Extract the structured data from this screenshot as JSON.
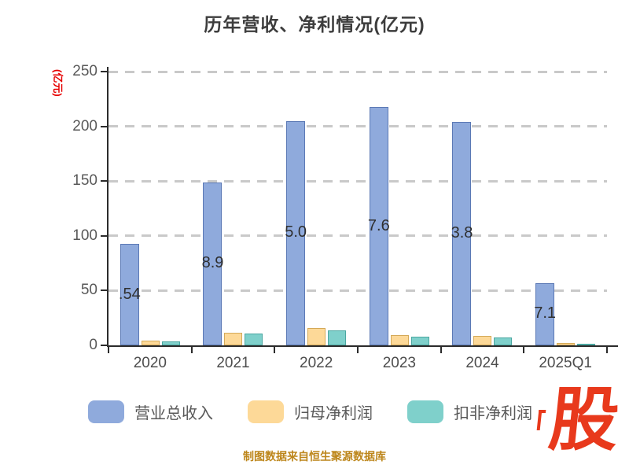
{
  "title": "历年营收、净利情况(亿元)",
  "y_axis": {
    "unit_label": "(亿元)",
    "tick_values": [
      0,
      50,
      100,
      150,
      200,
      250
    ],
    "tick_labels": [
      "0",
      "50",
      "100",
      "150",
      "200",
      "250"
    ]
  },
  "chart_data": {
    "type": "bar",
    "title": "历年营收、净利情况(亿元)",
    "categories": [
      "2020",
      "2021",
      "2022",
      "2023",
      "2024",
      "2025Q1"
    ],
    "series": [
      {
        "name": "营业总收入",
        "color": "#8faadc",
        "border_color": "#5b79b5",
        "values": [
          92.54,
          148.9,
          205.0,
          217.6,
          203.8,
          57.1
        ],
        "bar_labels": [
          ".54",
          "8.9",
          "5.0",
          "7.6",
          "3.8",
          "7.1"
        ]
      },
      {
        "name": "归母净利润",
        "color": "#fdd998",
        "border_color": "#d4a958",
        "values": [
          4.5,
          11.5,
          15.5,
          9.5,
          8.5,
          2.2
        ]
      },
      {
        "name": "扣非净利润",
        "color": "#7fd0cb",
        "border_color": "#4ba7a1",
        "values": [
          3.5,
          10.5,
          14.0,
          8.0,
          7.0,
          1.6
        ]
      }
    ],
    "ylim": [
      0,
      250
    ],
    "grid": "horizontal-dashed",
    "legend_position": "bottom"
  },
  "legend": {
    "items": [
      {
        "label": "营业总收入",
        "color": "#8faadc"
      },
      {
        "label": "归母净利润",
        "color": "#fdd998"
      },
      {
        "label": "扣非净利润",
        "color": "#7fd0cb"
      }
    ]
  },
  "footer": {
    "source_text": "制图数据来自恒生聚源数据库"
  },
  "watermark": {
    "text": "股",
    "color": "#e8391c"
  }
}
